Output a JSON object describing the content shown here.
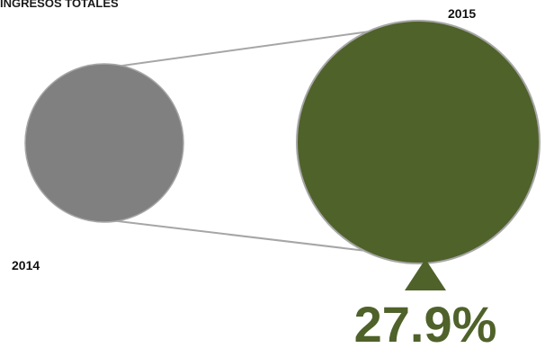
{
  "chart_data": {
    "type": "bubble-comparison",
    "title": "INGRESOS TOTALES",
    "bubbles": [
      {
        "label": "2014",
        "color": "#808080"
      },
      {
        "label": "2015",
        "color": "#4f622a"
      }
    ],
    "growth": {
      "value": 27.9,
      "label": "27.9%",
      "direction": "up",
      "color": "#4f622a"
    },
    "connector_color": "#a6a6a6"
  }
}
